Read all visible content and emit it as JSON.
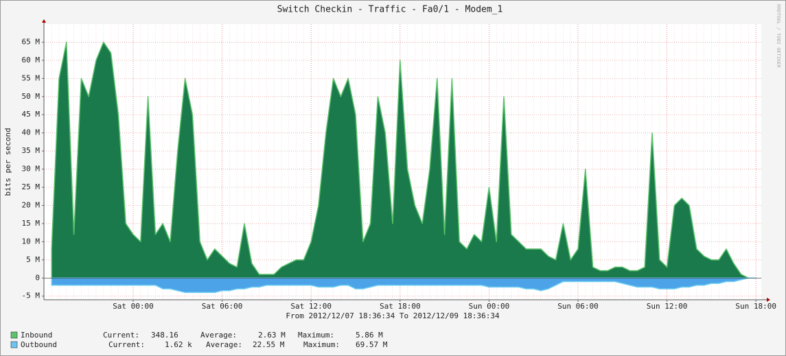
{
  "chart_data": {
    "type": "area",
    "title": "Switch Checkin - Traffic - Fa0/1  - Modem_1",
    "y_label": "bits per second",
    "x_caption": "From 2012/12/07 18:36:34 To 2012/12/09 18:36:34",
    "watermark": "RRDTOOL / TOBI OETIKER",
    "categories": [
      null,
      null,
      null,
      null,
      null,
      null,
      null,
      null,
      null,
      null,
      null,
      "Sat 00:00",
      null,
      null,
      null,
      null,
      null,
      null,
      null,
      null,
      null,
      null,
      null,
      "Sat 06:00",
      null,
      null,
      null,
      null,
      null,
      null,
      null,
      null,
      null,
      null,
      null,
      "Sat 12:00",
      null,
      null,
      null,
      null,
      null,
      null,
      null,
      null,
      null,
      null,
      null,
      "Sat 18:00",
      null,
      null,
      null,
      null,
      null,
      null,
      null,
      null,
      null,
      null,
      null,
      "Sun 00:00",
      null,
      null,
      null,
      null,
      null,
      null,
      null,
      null,
      null,
      null,
      null,
      "Sun 06:00",
      null,
      null,
      null,
      null,
      null,
      null,
      null,
      null,
      null,
      null,
      null,
      "Sun 12:00",
      null,
      null,
      null,
      null,
      null,
      null,
      null,
      null,
      null,
      null,
      null,
      "Sun 18:00"
    ],
    "series": [
      {
        "name": "Inbound",
        "color": "#1a7a4c",
        "values": [
          8000000,
          55000000,
          65000000,
          12000000,
          55000000,
          50000000,
          60000000,
          65000000,
          62000000,
          45000000,
          15000000,
          12000000,
          10000000,
          50000000,
          12000000,
          15000000,
          10000000,
          35000000,
          55000000,
          45000000,
          10000000,
          5000000,
          8000000,
          6000000,
          4000000,
          3000000,
          15000000,
          4000000,
          1000000,
          1000000,
          1000000,
          3000000,
          4000000,
          5000000,
          5000000,
          10000000,
          20000000,
          40000000,
          55000000,
          50000000,
          55000000,
          45000000,
          10000000,
          15000000,
          50000000,
          40000000,
          15000000,
          60000000,
          30000000,
          20000000,
          15000000,
          30000000,
          55000000,
          12000000,
          55000000,
          10000000,
          8000000,
          12000000,
          10000000,
          25000000,
          10000000,
          50000000,
          12000000,
          10000000,
          8000000,
          8000000,
          8000000,
          6000000,
          5000000,
          15000000,
          5000000,
          8000000,
          30000000,
          3000000,
          2000000,
          2000000,
          3000000,
          3000000,
          2000000,
          2000000,
          3000000,
          40000000,
          5000000,
          3000000,
          20000000,
          22000000,
          20000000,
          8000000,
          6000000,
          5000000,
          5000000,
          8000000,
          4000000,
          1000000,
          0,
          0
        ]
      },
      {
        "name": "Outbound",
        "color": "#4da3e8",
        "values": [
          -2000000,
          -2000000,
          -2000000,
          -2000000,
          -2000000,
          -2000000,
          -2000000,
          -2000000,
          -2000000,
          -2000000,
          -2000000,
          -2000000,
          -2000000,
          -2000000,
          -2000000,
          -3000000,
          -3000000,
          -3500000,
          -4000000,
          -4000000,
          -4000000,
          -4000000,
          -4000000,
          -3500000,
          -3500000,
          -3000000,
          -3000000,
          -2500000,
          -2500000,
          -2000000,
          -2000000,
          -2000000,
          -2000000,
          -2000000,
          -2000000,
          -2000000,
          -2500000,
          -2500000,
          -2500000,
          -2000000,
          -2000000,
          -3000000,
          -3000000,
          -2500000,
          -2000000,
          -2000000,
          -2000000,
          -2000000,
          -2000000,
          -2000000,
          -2000000,
          -2000000,
          -2000000,
          -2000000,
          -2000000,
          -2000000,
          -2000000,
          -2000000,
          -2000000,
          -2500000,
          -2500000,
          -2500000,
          -2500000,
          -2500000,
          -3000000,
          -3000000,
          -3500000,
          -3000000,
          -2000000,
          -1000000,
          -1000000,
          -1000000,
          -1000000,
          -1000000,
          -1000000,
          -1000000,
          -1000000,
          -1500000,
          -2000000,
          -2500000,
          -2500000,
          -2500000,
          -3000000,
          -3000000,
          -3000000,
          -2500000,
          -2500000,
          -2000000,
          -2000000,
          -1500000,
          -1500000,
          -1000000,
          -1000000,
          -500000,
          0,
          0
        ]
      }
    ],
    "legend_stats": [
      [
        {
          "label": "Current:",
          "value": "348.16"
        },
        {
          "label": "Average:",
          "value": "2.63 M"
        },
        {
          "label": "Maximum:",
          "value": "5.86 M"
        }
      ],
      [
        {
          "label": "Current:",
          "value": "1.62 k"
        },
        {
          "label": "Average:",
          "value": "22.55 M"
        },
        {
          "label": "Maximum:",
          "value": "69.57 M"
        }
      ]
    ],
    "ylim": [
      -6000000,
      70000000
    ],
    "yticks": [
      {
        "value": -5000000,
        "label": "-5 M"
      },
      0,
      {
        "value": 5000000,
        "label": "5 M"
      },
      {
        "value": 10000000,
        "label": "10 M"
      },
      {
        "value": 15000000,
        "label": "15 M"
      },
      {
        "value": 20000000,
        "label": "20 M"
      },
      {
        "value": 25000000,
        "label": "25 M"
      },
      {
        "value": 30000000,
        "label": "30 M"
      },
      {
        "value": 35000000,
        "label": "35 M"
      },
      {
        "value": 40000000,
        "label": "40 M"
      },
      {
        "value": 45000000,
        "label": "45 M"
      },
      {
        "value": 50000000,
        "label": "50 M"
      },
      {
        "value": 55000000,
        "label": "55 M"
      },
      {
        "value": 60000000,
        "label": "60 M"
      },
      {
        "value": 65000000,
        "label": "65 M"
      }
    ],
    "grid": true
  }
}
